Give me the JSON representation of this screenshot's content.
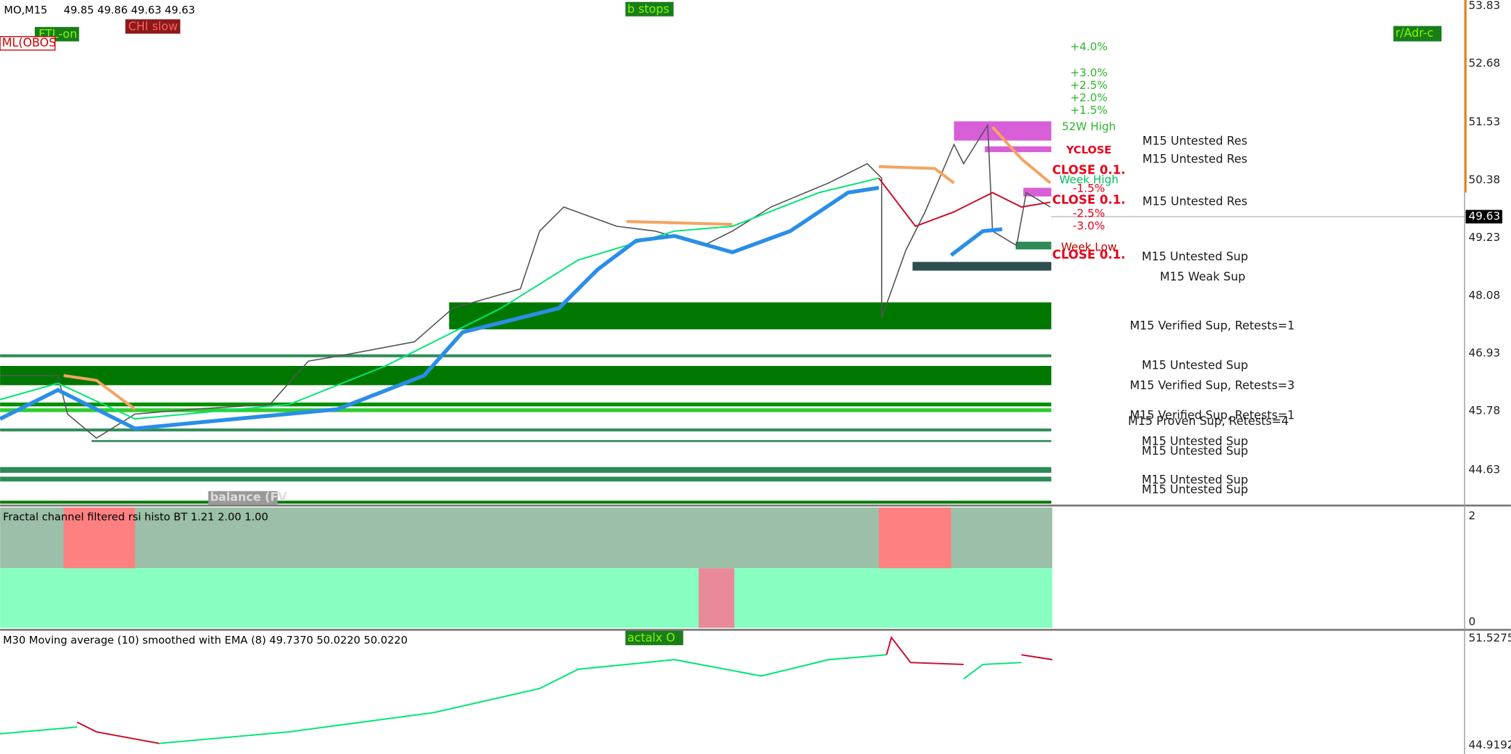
{
  "header": {
    "symbol": "MO,M15",
    "ohlc": "49.85 49.86 49.63 49.63"
  },
  "badges": [
    "FTL-on",
    "CHI slow",
    "ML(OBOS",
    "b stops",
    "r/Adr-c",
    "balance (FV",
    "actalx O"
  ],
  "price_axis": {
    "ticks": [
      "53.83",
      "52.68",
      "51.53",
      "50.38",
      "49.23",
      "48.08",
      "46.93",
      "45.78",
      "44.63"
    ],
    "current": "49.63"
  },
  "levels": [
    "M15 Untested Res",
    "M15 Untested Res",
    "M15 Untested Res",
    "M15 Untested Sup",
    "M15 Weak Sup",
    "M15 Verified Sup, Retests=1",
    "M15 Untested Sup",
    "M15 Verified Sup, Retests=3",
    "M15 Verified Sup, Retests=1",
    "M15 Proven Sup, Retests=4",
    "M15 Untested Sup",
    "M15 Untested Sup",
    "M15 Untested Sup",
    "M15 Untested Sup"
  ],
  "percent_labels": [
    "+4.0%",
    "+3.0%",
    "+2.5%",
    "+2.0%",
    "+1.5%",
    "-1.5%",
    "-2.5%",
    "-3.0%"
  ],
  "markers": [
    "52W High",
    "YCLOSE",
    "CLOSE 0.1.",
    "Week High",
    "CLOSE 0.1.",
    "Week Low",
    "CLOSE 0.1."
  ],
  "indicators": [
    {
      "title": "Fractal channel filtered rsi histo BT 1.21 2.00 1.00",
      "ticks": [
        "2",
        "0"
      ]
    },
    {
      "title": "M30 Moving average (10) smoothed with EMA (8) 49.7370 50.0220 50.0220",
      "ticks": [
        "51.5275",
        "44.9192"
      ]
    }
  ]
}
